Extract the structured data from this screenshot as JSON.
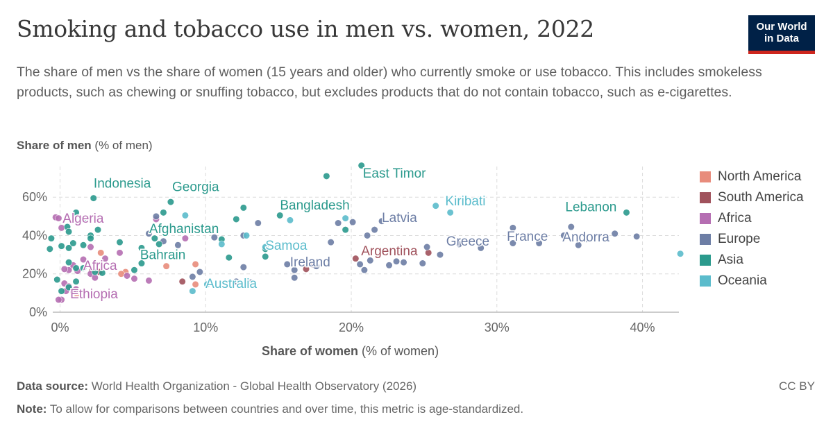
{
  "header": {
    "title": "Smoking and tobacco use in men vs. women, 2022",
    "subtitle": "The share of men vs the share of women (15 years and older) who currently smoke or use tobacco. This includes smokeless products, such as chewing or snuffing tobacco, but excludes products that do not contain tobacco, such as e-cigarettes.",
    "logo_line1": "Our World",
    "logo_line2": "in Data"
  },
  "footer": {
    "source_label": "Data source:",
    "source_text": "World Health Organization - Global Health Observatory (2026)",
    "note_label": "Note:",
    "note_text": "To allow for comparisons between countries and over time, this metric is age-standardized.",
    "license": "CC BY"
  },
  "colors": {
    "North America": "#e88c7c",
    "South America": "#a0525c",
    "Africa": "#b56eb2",
    "Europe": "#6d7ea5",
    "Asia": "#2b9a8d",
    "Oceania": "#5bbccc",
    "grid": "#dcdcdc",
    "axis": "#999999"
  },
  "chart_data": {
    "type": "scatter",
    "xlabel_bold": "Share of women",
    "xlabel_rest": " (% of women)",
    "ylabel_bold": "Share of men",
    "ylabel_rest": " (% of men)",
    "xlim": [
      -0.5,
      42.5
    ],
    "ylim": [
      0,
      76
    ],
    "x_ticks": [
      0,
      10,
      20,
      30,
      40
    ],
    "x_tick_labels": [
      "0%",
      "10%",
      "20%",
      "30%",
      "40%"
    ],
    "y_ticks": [
      0,
      20,
      40,
      60
    ],
    "y_tick_labels": [
      "0%",
      "20%",
      "40%",
      "60%"
    ],
    "grid": true,
    "legend_position": "right",
    "legend": [
      "North America",
      "South America",
      "Africa",
      "Europe",
      "Asia",
      "Oceania"
    ],
    "labeled_points": [
      {
        "label": "East Timor",
        "region": "Asia",
        "x": 20.7,
        "y": 76
      },
      {
        "label": "Indonesia",
        "region": "Asia",
        "x": 2.5,
        "y": 59.5
      },
      {
        "label": "Georgia",
        "region": "Asia",
        "x": 7.7,
        "y": 58
      },
      {
        "label": "Bangladesh",
        "region": "Asia",
        "x": 15.2,
        "y": 50
      },
      {
        "label": "Kiribati",
        "region": "Oceania",
        "x": 25.5,
        "y": 55
      },
      {
        "label": "Lebanon",
        "region": "Asia",
        "x": 38.8,
        "y": 52
      },
      {
        "label": "Latvia",
        "region": "Europe",
        "x": 22.1,
        "y": 47
      },
      {
        "label": "Algeria",
        "region": "Africa",
        "x": -0.2,
        "y": 49.5
      },
      {
        "label": "Afghanistan",
        "region": "Asia",
        "x": 6.6,
        "y": 39
      },
      {
        "label": "Samoa",
        "region": "Oceania",
        "x": 14.1,
        "y": 34
      },
      {
        "label": "Greece",
        "region": "Europe",
        "x": 31,
        "y": 37
      },
      {
        "label": "France",
        "region": "Europe",
        "x": 34.5,
        "y": 39.5
      },
      {
        "label": "Andorra",
        "region": "Europe",
        "x": 38.7,
        "y": 39
      },
      {
        "label": "Argentina",
        "region": "South America",
        "x": 20.2,
        "y": 27.5
      },
      {
        "label": "Bahrain",
        "region": "Asia",
        "x": 5.5,
        "y": 25.5
      },
      {
        "label": "Ireland",
        "region": "Europe",
        "x": 15.6,
        "y": 26
      },
      {
        "label": "Africa",
        "region": "Africa",
        "x": 1.6,
        "y": 23.5
      },
      {
        "label": "Australia",
        "region": "Oceania",
        "x": 9.9,
        "y": 14.5
      },
      {
        "label": "Ethiopia",
        "region": "Africa",
        "x": 0.7,
        "y": 9.5
      }
    ],
    "series": [
      {
        "name": "North America",
        "points": [
          [
            2.8,
            31
          ],
          [
            4.5,
            21
          ],
          [
            7.3,
            24
          ],
          [
            9.3,
            25
          ],
          [
            9.3,
            14.5
          ],
          [
            4.2,
            20
          ],
          [
            1.2,
            9
          ]
        ]
      },
      {
        "name": "South America",
        "points": [
          [
            8.4,
            16
          ],
          [
            16.9,
            22.5
          ],
          [
            17.3,
            25
          ],
          [
            20.3,
            28
          ],
          [
            25.3,
            31
          ],
          [
            2.7,
            21
          ],
          [
            2.2,
            22
          ]
        ]
      },
      {
        "name": "Africa",
        "points": [
          [
            -0.3,
            49.5
          ],
          [
            -0.1,
            49
          ],
          [
            0.1,
            44
          ],
          [
            2.1,
            34
          ],
          [
            1.6,
            27.5
          ],
          [
            1.2,
            21.5
          ],
          [
            0.6,
            22
          ],
          [
            0.3,
            22.5
          ],
          [
            0.9,
            24.5
          ],
          [
            2.1,
            20
          ],
          [
            2.4,
            18
          ],
          [
            0.3,
            15
          ],
          [
            0.6,
            13.5
          ],
          [
            1.1,
            12
          ],
          [
            0.4,
            11
          ],
          [
            0.1,
            6.5
          ],
          [
            -0.1,
            6.5
          ],
          [
            3.1,
            28
          ],
          [
            4.1,
            31
          ],
          [
            5.1,
            17.5
          ],
          [
            6.1,
            16.5
          ],
          [
            4.6,
            19
          ],
          [
            6.6,
            48.5
          ],
          [
            8.6,
            38.5
          ],
          [
            0.9,
            10.5
          ]
        ]
      },
      {
        "name": "Europe",
        "points": [
          [
            6.6,
            50
          ],
          [
            6.1,
            41
          ],
          [
            7.1,
            37
          ],
          [
            8.1,
            35
          ],
          [
            12.6,
            40
          ],
          [
            13.6,
            46.5
          ],
          [
            10.6,
            39
          ],
          [
            9.6,
            21
          ],
          [
            9.1,
            18.5
          ],
          [
            12.1,
            16
          ],
          [
            13.1,
            15.5
          ],
          [
            12.6,
            23.5
          ],
          [
            15.6,
            25
          ],
          [
            16.1,
            22
          ],
          [
            17.6,
            24
          ],
          [
            16.1,
            18
          ],
          [
            18.6,
            36.5
          ],
          [
            19.1,
            46.5
          ],
          [
            20.1,
            47
          ],
          [
            21.1,
            40
          ],
          [
            21.6,
            43
          ],
          [
            22.1,
            47.5
          ],
          [
            20.6,
            25
          ],
          [
            20.9,
            22
          ],
          [
            21.3,
            27
          ],
          [
            22.6,
            24.5
          ],
          [
            23.1,
            26.5
          ],
          [
            23.6,
            26
          ],
          [
            24.9,
            25.5
          ],
          [
            25.2,
            34
          ],
          [
            26.1,
            30
          ],
          [
            27.4,
            35.5
          ],
          [
            28.9,
            33.5
          ],
          [
            31.1,
            36
          ],
          [
            31.1,
            44
          ],
          [
            32.9,
            36
          ],
          [
            34.6,
            40
          ],
          [
            35.1,
            44.5
          ],
          [
            35.6,
            35
          ],
          [
            36.1,
            38
          ],
          [
            38.1,
            41
          ],
          [
            39.6,
            39.5
          ]
        ]
      },
      {
        "name": "Asia",
        "points": [
          [
            20.7,
            76.5
          ],
          [
            18.3,
            71
          ],
          [
            2.3,
            59.5
          ],
          [
            7.6,
            57.5
          ],
          [
            12.6,
            54.5
          ],
          [
            7.1,
            52
          ],
          [
            1.1,
            52
          ],
          [
            1.6,
            48.5
          ],
          [
            0.5,
            44.5
          ],
          [
            15.1,
            50.5
          ],
          [
            19.6,
            43
          ],
          [
            38.9,
            52
          ],
          [
            -0.6,
            38.5
          ],
          [
            0.6,
            42
          ],
          [
            2.1,
            40
          ],
          [
            2.6,
            43
          ],
          [
            4.1,
            36.5
          ],
          [
            6.5,
            38.5
          ],
          [
            6.8,
            35.5
          ],
          [
            0.1,
            34.5
          ],
          [
            0.6,
            33.5
          ],
          [
            0.9,
            36
          ],
          [
            2.1,
            38.5
          ],
          [
            1.6,
            35
          ],
          [
            -0.7,
            33
          ],
          [
            5.6,
            33.5
          ],
          [
            5.6,
            25.5
          ],
          [
            11.1,
            38
          ],
          [
            11.6,
            28.5
          ],
          [
            14.1,
            33
          ],
          [
            14.1,
            29
          ],
          [
            5.1,
            22
          ],
          [
            2.4,
            21
          ],
          [
            1.1,
            23
          ],
          [
            -0.2,
            17
          ],
          [
            0.1,
            11
          ],
          [
            0.6,
            13
          ],
          [
            1.1,
            16
          ],
          [
            1.6,
            23
          ],
          [
            0.6,
            26
          ],
          [
            12.1,
            48.5
          ],
          [
            2.9,
            20.5
          ]
        ]
      },
      {
        "name": "Oceania",
        "points": [
          [
            25.8,
            55.5
          ],
          [
            26.8,
            52
          ],
          [
            14.1,
            34
          ],
          [
            15.8,
            48
          ],
          [
            8.6,
            50.5
          ],
          [
            11.1,
            35.5
          ],
          [
            12.8,
            40
          ],
          [
            10.1,
            14.5
          ],
          [
            9.1,
            11
          ],
          [
            19.6,
            49
          ],
          [
            42.6,
            30.5
          ]
        ]
      }
    ]
  }
}
